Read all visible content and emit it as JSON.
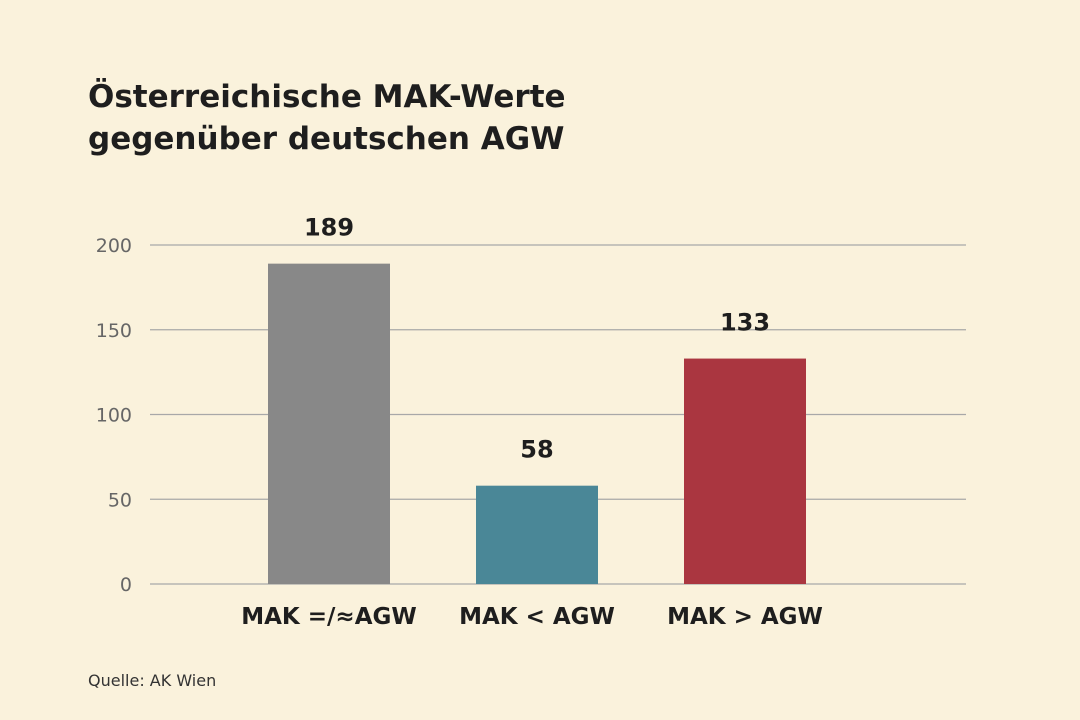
{
  "title_line1": "Österreichische MAK-Werte",
  "title_line2": "gegenüber deutschen AGW",
  "source": "Quelle: AK Wien",
  "chart_data": {
    "type": "bar",
    "title": "Österreichische MAK-Werte gegenüber deutschen AGW",
    "categories": [
      "MAK =/≈AGW",
      "MAK < AGW",
      "MAK > AGW"
    ],
    "values": [
      189,
      58,
      133
    ],
    "value_labels": [
      "189",
      "58",
      "133"
    ],
    "bar_colors": [
      "#888888",
      "#4a8797",
      "#aa3640"
    ],
    "xlabel": "",
    "ylabel": "",
    "ylim": [
      0,
      200
    ],
    "yticks": [
      0,
      50,
      100,
      150,
      200
    ],
    "grid": true,
    "legend": "none"
  },
  "colors": {
    "background": "#faf2dc",
    "grid": "#a8a8a8",
    "tick_text": "#666666",
    "text": "#1e1e1e"
  }
}
